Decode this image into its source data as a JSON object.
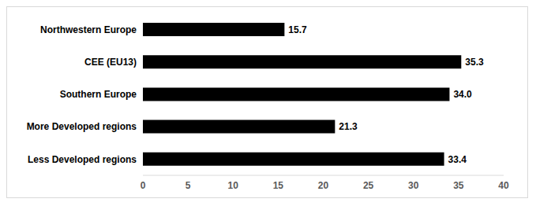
{
  "chart_data": {
    "type": "bar",
    "orientation": "horizontal",
    "categories": [
      "Northwestern Europe",
      "CEE (EU13)",
      "Southern Europe",
      "More Developed regions",
      "Less Developed regions"
    ],
    "values": [
      15.7,
      35.3,
      34.0,
      21.3,
      33.4
    ],
    "value_labels": [
      "15.7",
      "35.3",
      "34.0",
      "21.3",
      "33.4"
    ],
    "color": "#000000",
    "xlim": [
      0,
      40
    ],
    "xticks": [
      0,
      5,
      10,
      15,
      20,
      25,
      30,
      35,
      40
    ],
    "grid": false,
    "data_labels": true
  }
}
